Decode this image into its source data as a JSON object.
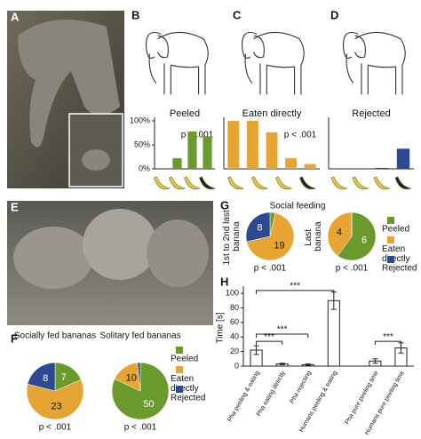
{
  "panel_labels": [
    "A",
    "B",
    "C",
    "D",
    "E",
    "F",
    "G",
    "H"
  ],
  "chart_data": [
    {
      "type": "bar",
      "title": "Peeled",
      "annotation": "p < .001",
      "categories": [
        null,
        null,
        null,
        null
      ],
      "values": [
        0,
        22,
        78,
        68
      ],
      "color": "#6b9a2c",
      "ylim": [
        0,
        100
      ],
      "yticks": [
        {
          "value": 0,
          "label": "0%"
        },
        {
          "value": 50,
          "label": "50%"
        },
        {
          "value": 100,
          "label": "100%"
        }
      ]
    },
    {
      "type": "bar",
      "title": "Eaten directly",
      "annotation": "p < .001",
      "categories": [
        null,
        null,
        null,
        null,
        null
      ],
      "values": [
        100,
        100,
        76,
        22,
        10
      ],
      "color": "#e6a532",
      "ylim": [
        0,
        100
      ]
    },
    {
      "type": "bar",
      "title": "Rejected",
      "categories": [
        null,
        null,
        null,
        null
      ],
      "values": [
        0,
        0,
        2,
        42
      ],
      "color": "#2b4a8f",
      "ylim": [
        0,
        100
      ]
    },
    {
      "type": "pie",
      "title": "Social feeding",
      "categories": [
        "Peeled",
        "Eaten directly",
        "Rejected"
      ],
      "colors": [
        "#6b9a2c",
        "#e6a532",
        "#2b4a8f"
      ],
      "pies": [
        {
          "label": "1st to 2nd last banana",
          "values": [
            1,
            19,
            8
          ],
          "value_labels": [
            null,
            "19",
            "8"
          ],
          "annotation": "p < .001"
        },
        {
          "label": "Last banana",
          "values": [
            6,
            4,
            0
          ],
          "value_labels": [
            "6",
            "4",
            null
          ],
          "annotation": "p < .001"
        }
      ]
    },
    {
      "type": "pie",
      "categories": [
        "Peeled",
        "Eaten directly",
        "Rejected"
      ],
      "colors": [
        "#6b9a2c",
        "#e6a532",
        "#2b4a8f"
      ],
      "pies": [
        {
          "label": "Socially fed bananas",
          "values": [
            7,
            23,
            8
          ],
          "value_labels": [
            "7",
            "23",
            "8"
          ],
          "annotation": "p < .001"
        },
        {
          "label": "Solitary fed bananas",
          "values": [
            50,
            10,
            1
          ],
          "value_labels": [
            "50",
            "10",
            null
          ],
          "annotation": "p < .001"
        }
      ]
    },
    {
      "type": "bar",
      "ylabel": "Time [s]",
      "categories": [
        "Pha peeling & eating",
        "Pha eating directly",
        "Pha rejecting",
        "Humans peeling & eating",
        "Pha pure peeling time",
        "Humans pure peeling time"
      ],
      "values": [
        22,
        3,
        2,
        90,
        7,
        25
      ],
      "errors": [
        6,
        1,
        1,
        12,
        3,
        7
      ],
      "color": "#ffffff",
      "ylim": [
        0,
        105
      ],
      "yticks": [
        0,
        20,
        40,
        60,
        80,
        100
      ],
      "annotations": [
        "***",
        "***",
        "***",
        "***"
      ]
    }
  ]
}
